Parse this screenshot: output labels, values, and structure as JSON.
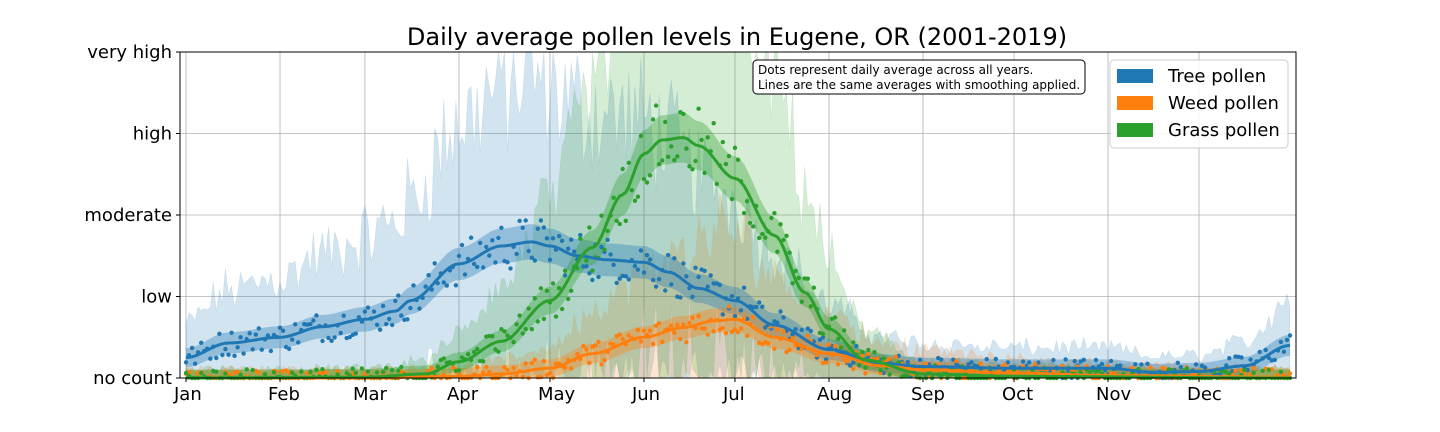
{
  "chart_data": {
    "type": "line",
    "title": "Daily average pollen levels in Eugene, OR (2001-2019)",
    "xlabel": "",
    "ylabel": "",
    "x_unit": "day of year",
    "xlim": [
      1,
      365
    ],
    "ylim": [
      0,
      4
    ],
    "grid": true,
    "legend_placement": "top-right",
    "month_ticks": [
      {
        "label": "Jan",
        "day": 1
      },
      {
        "label": "Feb",
        "day": 32
      },
      {
        "label": "Mar",
        "day": 60
      },
      {
        "label": "Apr",
        "day": 91
      },
      {
        "label": "May",
        "day": 121
      },
      {
        "label": "Jun",
        "day": 152
      },
      {
        "label": "Jul",
        "day": 182
      },
      {
        "label": "Aug",
        "day": 213
      },
      {
        "label": "Sep",
        "day": 244
      },
      {
        "label": "Oct",
        "day": 274
      },
      {
        "label": "Nov",
        "day": 305
      },
      {
        "label": "Dec",
        "day": 335
      }
    ],
    "y_ticks": [
      {
        "label": "no count",
        "value": 0
      },
      {
        "label": "low",
        "value": 1
      },
      {
        "label": "moderate",
        "value": 2
      },
      {
        "label": "high",
        "value": 3
      },
      {
        "label": "very high",
        "value": 4
      }
    ],
    "annotation": [
      "Dots represent daily average across all years.",
      "Lines are the same averages with smoothing applied."
    ],
    "series": [
      {
        "name": "Tree pollen",
        "color": "#1f77b4",
        "x": [
          1,
          15,
          32,
          46,
          60,
          70,
          75,
          91,
          105,
          115,
          121,
          130,
          140,
          152,
          160,
          170,
          182,
          195,
          213,
          230,
          244,
          274,
          305,
          320,
          335,
          350,
          365
        ],
        "y": [
          0.25,
          0.43,
          0.5,
          0.63,
          0.72,
          0.82,
          0.95,
          1.4,
          1.62,
          1.67,
          1.62,
          1.5,
          1.45,
          1.42,
          1.3,
          1.1,
          0.95,
          0.65,
          0.35,
          0.18,
          0.14,
          0.12,
          0.12,
          0.07,
          0.08,
          0.15,
          0.4
        ]
      },
      {
        "name": "Weed pollen",
        "color": "#ff7f0e",
        "x": [
          1,
          60,
          91,
          105,
          121,
          135,
          152,
          165,
          175,
          182,
          195,
          213,
          230,
          244,
          274,
          305,
          365
        ],
        "y": [
          0,
          0,
          0.02,
          0.05,
          0.12,
          0.3,
          0.5,
          0.62,
          0.7,
          0.72,
          0.5,
          0.3,
          0.15,
          0.1,
          0.06,
          0.03,
          0.01
        ]
      },
      {
        "name": "Grass pollen",
        "color": "#2ca02c",
        "x": [
          1,
          60,
          80,
          91,
          105,
          121,
          135,
          145,
          152,
          158,
          165,
          170,
          182,
          195,
          205,
          213,
          225,
          244,
          274,
          365
        ],
        "y": [
          0,
          0.01,
          0.05,
          0.2,
          0.45,
          0.95,
          1.6,
          2.25,
          2.75,
          2.92,
          2.95,
          2.85,
          2.45,
          1.75,
          1.05,
          0.6,
          0.22,
          0.05,
          0.02,
          0
        ]
      }
    ]
  }
}
